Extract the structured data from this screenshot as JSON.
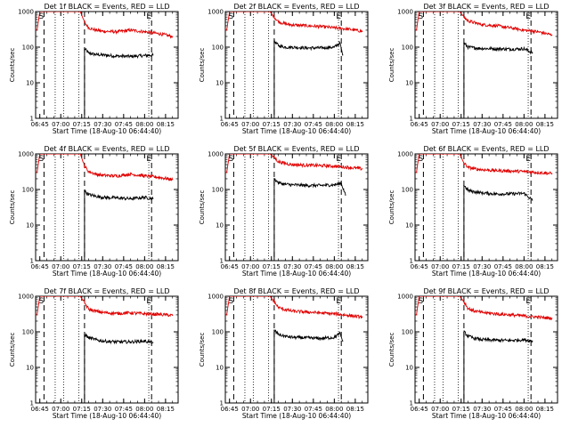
{
  "figure": {
    "panel_titles": [
      "Det 1f BLACK = Events, RED = LLD",
      "Det 2f BLACK = Events, RED = LLD",
      "Det 3f BLACK = Events, RED = LLD",
      "Det 4f BLACK = Events, RED = LLD",
      "Det 5f BLACK = Events, RED = LLD",
      "Det 6f BLACK = Events, RED = LLD",
      "Det 7f BLACK = Events, RED = LLD",
      "Det 8f BLACK = Events, RED = LLD",
      "Det 9f BLACK = Events, RED = LLD"
    ],
    "xlabel": "Start Time (18-Aug-10 06:44:40)",
    "ylabel": "Counts/sec",
    "x_tick_labels": [
      "06:45",
      "07:00",
      "07:15",
      "07:30",
      "07:45",
      "08:00",
      "08:15"
    ],
    "y_tick_labels": [
      "1",
      "10",
      "100",
      "1000"
    ],
    "start_marker": "S",
    "end_marker": "E",
    "colors": {
      "events": "#000000",
      "lld": "#e00000",
      "axes": "#000000",
      "background": "#ffffff"
    }
  },
  "chart_data": [
    {
      "type": "line",
      "detector": "1f",
      "title": "Det 1f BLACK = Events, RED = LLD",
      "xlabel": "Start Time (18-Aug-10 06:44:40)",
      "ylabel": "Counts/sec",
      "xlim": [
        "06:42",
        "08:24"
      ],
      "ylim": [
        1,
        1000
      ],
      "yscale": "log",
      "x_ticks": [
        "06:45",
        "07:00",
        "07:15",
        "07:30",
        "07:45",
        "08:00",
        "08:15"
      ],
      "y_ticks": [
        1,
        10,
        100,
        1000
      ],
      "vlines_dashed": [
        "06:48",
        "07:17",
        "08:05"
      ],
      "vlines_dotted": [
        "06:56",
        "07:02",
        "07:13",
        "08:03"
      ],
      "series": [
        {
          "name": "BLACK = Events",
          "color": "#000000",
          "x": [
            "07:17",
            "07:20",
            "07:25",
            "07:30",
            "07:40",
            "07:50",
            "08:00",
            "08:06"
          ],
          "y": [
            90,
            68,
            62,
            60,
            56,
            55,
            58,
            60
          ]
        },
        {
          "name": "RED = LLD",
          "color": "#e00000",
          "x": [
            "06:43",
            "06:45",
            "06:47",
            "07:14",
            "07:17",
            "07:20",
            "07:25",
            "07:30",
            "07:40",
            "07:50",
            "08:00",
            "08:10",
            "08:20"
          ],
          "y": [
            300,
            1000,
            1000,
            1000,
            500,
            350,
            300,
            280,
            270,
            300,
            270,
            240,
            200
          ]
        }
      ]
    },
    {
      "type": "line",
      "detector": "2f",
      "title": "Det 2f BLACK = Events, RED = LLD",
      "xlabel": "Start Time (18-Aug-10 06:44:40)",
      "ylabel": "Counts/sec",
      "xlim": [
        "06:42",
        "08:24"
      ],
      "ylim": [
        1,
        1000
      ],
      "yscale": "log",
      "x_ticks": [
        "06:45",
        "07:00",
        "07:15",
        "07:30",
        "07:45",
        "08:00",
        "08:15"
      ],
      "y_ticks": [
        1,
        10,
        100,
        1000
      ],
      "vlines_dashed": [
        "06:48",
        "07:17",
        "08:05"
      ],
      "vlines_dotted": [
        "06:56",
        "07:02",
        "07:13",
        "08:03"
      ],
      "series": [
        {
          "name": "BLACK = Events",
          "color": "#000000",
          "x": [
            "07:17",
            "07:20",
            "07:25",
            "07:30",
            "07:40",
            "07:50",
            "08:00",
            "08:04",
            "08:06"
          ],
          "y": [
            150,
            110,
            100,
            100,
            95,
            95,
            100,
            130,
            60
          ]
        },
        {
          "name": "RED = LLD",
          "color": "#e00000",
          "x": [
            "06:43",
            "06:45",
            "06:47",
            "07:14",
            "07:17",
            "07:20",
            "07:25",
            "07:30",
            "07:40",
            "07:50",
            "08:00",
            "08:10",
            "08:20"
          ],
          "y": [
            300,
            1000,
            1000,
            1000,
            700,
            520,
            450,
            420,
            400,
            380,
            350,
            320,
            280
          ]
        }
      ]
    },
    {
      "type": "line",
      "detector": "3f",
      "title": "Det 3f BLACK = Events, RED = LLD",
      "xlabel": "Start Time (18-Aug-10 06:44:40)",
      "ylabel": "Counts/sec",
      "xlim": [
        "06:42",
        "08:24"
      ],
      "ylim": [
        1,
        1000
      ],
      "yscale": "log",
      "x_ticks": [
        "06:45",
        "07:00",
        "07:15",
        "07:30",
        "07:45",
        "08:00",
        "08:15"
      ],
      "y_ticks": [
        1,
        10,
        100,
        1000
      ],
      "vlines_dashed": [
        "06:48",
        "07:17",
        "08:05"
      ],
      "vlines_dotted": [
        "06:56",
        "07:02",
        "07:13",
        "08:03"
      ],
      "series": [
        {
          "name": "BLACK = Events",
          "color": "#000000",
          "x": [
            "07:17",
            "07:20",
            "07:25",
            "07:30",
            "07:40",
            "07:50",
            "08:00",
            "08:06"
          ],
          "y": [
            130,
            100,
            95,
            92,
            90,
            88,
            90,
            70
          ]
        },
        {
          "name": "RED = LLD",
          "color": "#e00000",
          "x": [
            "06:43",
            "06:45",
            "06:47",
            "07:14",
            "07:17",
            "07:20",
            "07:25",
            "07:30",
            "07:40",
            "07:50",
            "08:00",
            "08:10",
            "08:20"
          ],
          "y": [
            300,
            1000,
            1000,
            1000,
            700,
            550,
            480,
            430,
            400,
            350,
            300,
            270,
            220
          ]
        }
      ]
    },
    {
      "type": "line",
      "detector": "4f",
      "title": "Det 4f BLACK = Events, RED = LLD",
      "xlabel": "Start Time (18-Aug-10 06:44:40)",
      "ylabel": "Counts/sec",
      "xlim": [
        "06:42",
        "08:24"
      ],
      "ylim": [
        1,
        1000
      ],
      "yscale": "log",
      "x_ticks": [
        "06:45",
        "07:00",
        "07:15",
        "07:30",
        "07:45",
        "08:00",
        "08:15"
      ],
      "y_ticks": [
        1,
        10,
        100,
        1000
      ],
      "vlines_dashed": [
        "06:48",
        "07:17",
        "08:05"
      ],
      "vlines_dotted": [
        "06:56",
        "07:02",
        "07:13",
        "08:03"
      ],
      "series": [
        {
          "name": "BLACK = Events",
          "color": "#000000",
          "x": [
            "07:17",
            "07:20",
            "07:25",
            "07:30",
            "07:40",
            "07:50",
            "08:00",
            "08:06"
          ],
          "y": [
            90,
            72,
            65,
            60,
            58,
            55,
            60,
            55
          ]
        },
        {
          "name": "RED = LLD",
          "color": "#e00000",
          "x": [
            "06:43",
            "06:45",
            "06:47",
            "07:14",
            "07:17",
            "07:20",
            "07:25",
            "07:30",
            "07:40",
            "07:50",
            "08:00",
            "08:10",
            "08:20"
          ],
          "y": [
            300,
            1000,
            1000,
            1000,
            450,
            320,
            270,
            250,
            240,
            270,
            240,
            220,
            190
          ]
        }
      ]
    },
    {
      "type": "line",
      "detector": "5f",
      "title": "Det 5f BLACK = Events, RED = LLD",
      "xlabel": "Start Time (18-Aug-10 06:44:40)",
      "ylabel": "Counts/sec",
      "xlim": [
        "06:42",
        "08:24"
      ],
      "ylim": [
        1,
        1000
      ],
      "yscale": "log",
      "x_ticks": [
        "06:45",
        "07:00",
        "07:15",
        "07:30",
        "07:45",
        "08:00",
        "08:15"
      ],
      "y_ticks": [
        1,
        10,
        100,
        1000
      ],
      "vlines_dashed": [
        "06:48",
        "07:17",
        "08:05"
      ],
      "vlines_dotted": [
        "06:56",
        "07:02",
        "07:13",
        "08:03"
      ],
      "series": [
        {
          "name": "BLACK = Events",
          "color": "#000000",
          "x": [
            "07:17",
            "07:20",
            "07:25",
            "07:30",
            "07:40",
            "07:50",
            "08:00",
            "08:05",
            "08:08"
          ],
          "y": [
            200,
            155,
            140,
            135,
            130,
            130,
            135,
            150,
            70
          ]
        },
        {
          "name": "RED = LLD",
          "color": "#e00000",
          "x": [
            "06:43",
            "06:45",
            "06:47",
            "07:14",
            "07:17",
            "07:20",
            "07:25",
            "07:30",
            "07:40",
            "07:50",
            "08:00",
            "08:10",
            "08:20"
          ],
          "y": [
            300,
            1000,
            1000,
            1000,
            800,
            600,
            540,
            500,
            480,
            470,
            450,
            420,
            380
          ]
        }
      ]
    },
    {
      "type": "line",
      "detector": "6f",
      "title": "Det 6f BLACK = Events, RED = LLD",
      "xlabel": "Start Time (18-Aug-10 06:44:40)",
      "ylabel": "Counts/sec",
      "xlim": [
        "06:42",
        "08:24"
      ],
      "ylim": [
        1,
        1000
      ],
      "yscale": "log",
      "x_ticks": [
        "06:45",
        "07:00",
        "07:15",
        "07:30",
        "07:45",
        "08:00",
        "08:15"
      ],
      "y_ticks": [
        1,
        10,
        100,
        1000
      ],
      "vlines_dashed": [
        "06:48",
        "07:17",
        "08:05"
      ],
      "vlines_dotted": [
        "06:56",
        "07:02",
        "07:13",
        "08:03"
      ],
      "series": [
        {
          "name": "BLACK = Events",
          "color": "#000000",
          "x": [
            "07:17",
            "07:20",
            "07:25",
            "07:30",
            "07:40",
            "07:50",
            "08:00",
            "08:06"
          ],
          "y": [
            130,
            95,
            85,
            80,
            75,
            75,
            78,
            50
          ]
        },
        {
          "name": "RED = LLD",
          "color": "#e00000",
          "x": [
            "06:43",
            "06:45",
            "06:47",
            "07:14",
            "07:17",
            "07:20",
            "07:25",
            "07:30",
            "07:40",
            "07:50",
            "08:00",
            "08:10",
            "08:20"
          ],
          "y": [
            300,
            1000,
            1000,
            1000,
            550,
            420,
            380,
            360,
            340,
            330,
            320,
            300,
            280
          ]
        }
      ]
    },
    {
      "type": "line",
      "detector": "7f",
      "title": "Det 7f BLACK = Events, RED = LLD",
      "xlabel": "Start Time (18-Aug-10 06:44:40)",
      "ylabel": "Counts/sec",
      "xlim": [
        "06:42",
        "08:24"
      ],
      "ylim": [
        1,
        1000
      ],
      "yscale": "log",
      "x_ticks": [
        "06:45",
        "07:00",
        "07:15",
        "07:30",
        "07:45",
        "08:00",
        "08:15"
      ],
      "y_ticks": [
        1,
        10,
        100,
        1000
      ],
      "vlines_dashed": [
        "06:48",
        "07:17",
        "08:05"
      ],
      "vlines_dotted": [
        "06:56",
        "07:02",
        "07:13",
        "08:03"
      ],
      "series": [
        {
          "name": "BLACK = Events",
          "color": "#000000",
          "x": [
            "07:17",
            "07:20",
            "07:25",
            "07:30",
            "07:40",
            "07:50",
            "08:00",
            "08:06"
          ],
          "y": [
            85,
            68,
            60,
            55,
            52,
            52,
            55,
            50
          ]
        },
        {
          "name": "RED = LLD",
          "color": "#e00000",
          "x": [
            "06:43",
            "06:45",
            "06:47",
            "07:14",
            "07:17",
            "07:20",
            "07:25",
            "07:30",
            "07:40",
            "07:50",
            "08:00",
            "08:10",
            "08:20"
          ],
          "y": [
            300,
            1000,
            1000,
            1000,
            650,
            430,
            380,
            350,
            330,
            340,
            320,
            310,
            290
          ]
        }
      ]
    },
    {
      "type": "line",
      "detector": "8f",
      "title": "Det 8f BLACK = Events, RED = LLD",
      "xlabel": "Start Time (18-Aug-10 06:44:40)",
      "ylabel": "Counts/sec",
      "xlim": [
        "06:42",
        "08:24"
      ],
      "ylim": [
        1,
        1000
      ],
      "yscale": "log",
      "x_ticks": [
        "06:45",
        "07:00",
        "07:15",
        "07:30",
        "07:45",
        "08:00",
        "08:15"
      ],
      "y_ticks": [
        1,
        10,
        100,
        1000
      ],
      "vlines_dashed": [
        "06:48",
        "07:17",
        "08:05"
      ],
      "vlines_dotted": [
        "06:56",
        "07:02",
        "07:13",
        "08:03"
      ],
      "series": [
        {
          "name": "BLACK = Events",
          "color": "#000000",
          "x": [
            "07:17",
            "07:20",
            "07:25",
            "07:30",
            "07:40",
            "07:50",
            "08:00",
            "08:04",
            "08:06"
          ],
          "y": [
            110,
            85,
            75,
            70,
            68,
            65,
            70,
            90,
            55
          ]
        },
        {
          "name": "RED = LLD",
          "color": "#e00000",
          "x": [
            "06:43",
            "06:45",
            "06:47",
            "07:14",
            "07:17",
            "07:20",
            "07:25",
            "07:30",
            "07:40",
            "07:50",
            "08:00",
            "08:10",
            "08:20"
          ],
          "y": [
            300,
            1000,
            1000,
            1000,
            700,
            480,
            420,
            380,
            360,
            340,
            320,
            290,
            260
          ]
        }
      ]
    },
    {
      "type": "line",
      "detector": "9f",
      "title": "Det 9f BLACK = Events, RED = LLD",
      "xlabel": "Start Time (18-Aug-10 06:44:40)",
      "ylabel": "Counts/sec",
      "xlim": [
        "06:42",
        "08:24"
      ],
      "ylim": [
        1,
        1000
      ],
      "yscale": "log",
      "x_ticks": [
        "06:45",
        "07:00",
        "07:15",
        "07:30",
        "07:45",
        "08:00",
        "08:15"
      ],
      "y_ticks": [
        1,
        10,
        100,
        1000
      ],
      "vlines_dashed": [
        "06:48",
        "07:17",
        "08:05"
      ],
      "vlines_dotted": [
        "06:56",
        "07:02",
        "07:13",
        "08:03"
      ],
      "series": [
        {
          "name": "BLACK = Events",
          "color": "#000000",
          "x": [
            "07:17",
            "07:20",
            "07:25",
            "07:30",
            "07:40",
            "07:50",
            "08:00",
            "08:06"
          ],
          "y": [
            100,
            75,
            65,
            60,
            58,
            57,
            60,
            55
          ]
        },
        {
          "name": "RED = LLD",
          "color": "#e00000",
          "x": [
            "06:43",
            "06:45",
            "06:47",
            "07:14",
            "07:17",
            "07:20",
            "07:25",
            "07:30",
            "07:40",
            "07:50",
            "08:00",
            "08:10",
            "08:20"
          ],
          "y": [
            300,
            1000,
            1000,
            1000,
            700,
            450,
            380,
            350,
            320,
            300,
            280,
            260,
            240
          ]
        }
      ]
    }
  ]
}
